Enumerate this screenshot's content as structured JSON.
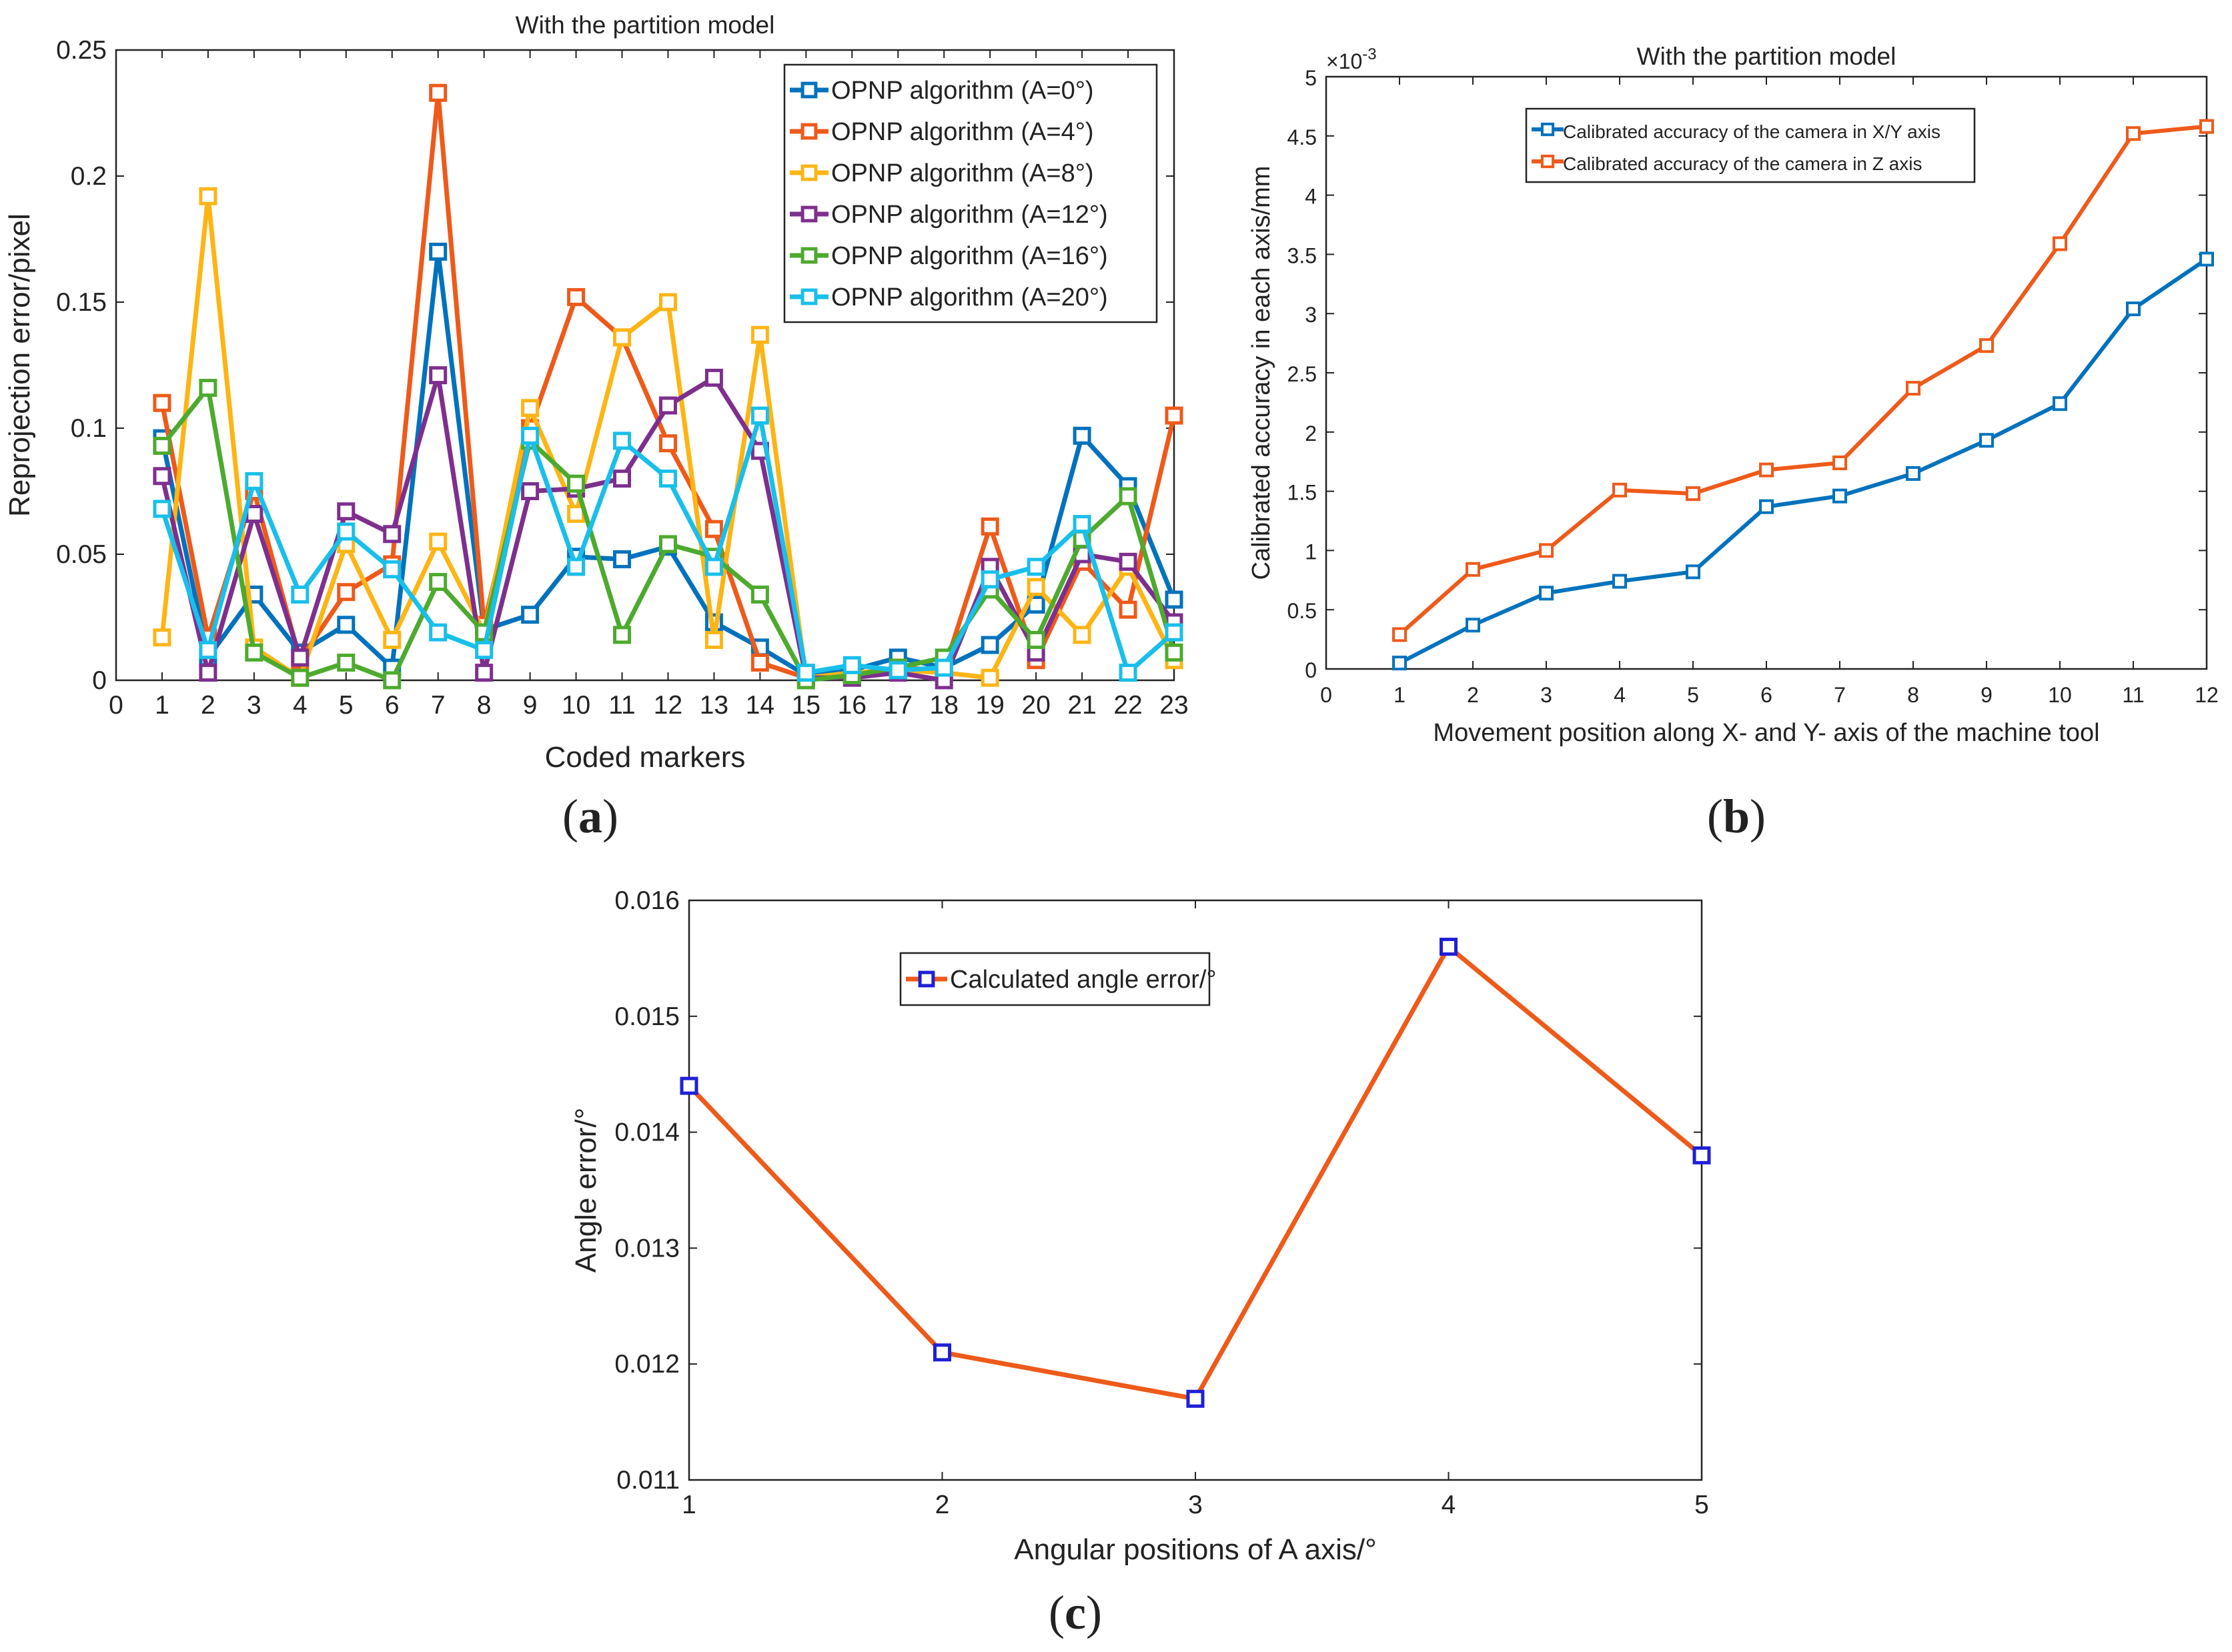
{
  "chart_data": [
    {
      "type": "line",
      "title": "With the partition model",
      "xlabel": "Coded markers",
      "ylabel": "Reprojection error/pixel",
      "panel_label": "a",
      "xlim": [
        0,
        23
      ],
      "ylim": [
        0,
        0.25
      ],
      "xticks": [
        "0",
        "1",
        "2",
        "3",
        "4",
        "5",
        "6",
        "7",
        "8",
        "9",
        "10",
        "11",
        "12",
        "13",
        "14",
        "15",
        "16",
        "17",
        "18",
        "19",
        "20",
        "21",
        "22",
        "23"
      ],
      "yticks": [
        "0",
        "0.05",
        "0.1",
        "0.15",
        "0.2",
        "0.25"
      ],
      "legend_position": "top-right",
      "x": [
        1,
        2,
        3,
        4,
        5,
        6,
        7,
        8,
        9,
        10,
        11,
        12,
        13,
        14,
        15,
        16,
        17,
        18,
        19,
        20,
        21,
        22,
        23
      ],
      "series": [
        {
          "name": "OPNP algorithm (A=0°)",
          "color": "#0072BD",
          "values": [
            0.096,
            0.009,
            0.034,
            0.011,
            0.022,
            0.005,
            0.17,
            0.02,
            0.026,
            0.049,
            0.048,
            0.053,
            0.023,
            0.013,
            0.002,
            0.004,
            0.009,
            0.005,
            0.014,
            0.03,
            0.097,
            0.077,
            0.032
          ]
        },
        {
          "name": "OPNP algorithm (A=4°)",
          "color": "#EE5A1A",
          "values": [
            0.11,
            0.017,
            0.075,
            0.008,
            0.035,
            0.046,
            0.233,
            0.022,
            0.1,
            0.152,
            0.136,
            0.094,
            0.06,
            0.007,
            0.001,
            0.002,
            0.005,
            0.004,
            0.061,
            0.008,
            0.047,
            0.028,
            0.105
          ]
        },
        {
          "name": "OPNP algorithm (A=8°)",
          "color": "#FDB515",
          "values": [
            0.017,
            0.192,
            0.013,
            0.001,
            0.054,
            0.016,
            0.055,
            0.019,
            0.108,
            0.066,
            0.136,
            0.15,
            0.016,
            0.137,
            0.001,
            0.003,
            0.004,
            0.003,
            0.001,
            0.037,
            0.018,
            0.045,
            0.008
          ]
        },
        {
          "name": "OPNP algorithm (A=12°)",
          "color": "#7E2F8E",
          "values": [
            0.081,
            0.003,
            0.066,
            0.009,
            0.067,
            0.058,
            0.121,
            0.003,
            0.075,
            0.076,
            0.08,
            0.109,
            0.12,
            0.091,
            0.001,
            0.001,
            0.003,
            0.0,
            0.045,
            0.011,
            0.05,
            0.047,
            0.023
          ]
        },
        {
          "name": "OPNP algorithm (A=16°)",
          "color": "#4DAA2E",
          "values": [
            0.093,
            0.116,
            0.011,
            0.001,
            0.007,
            0.0,
            0.039,
            0.019,
            0.095,
            0.078,
            0.018,
            0.054,
            0.049,
            0.034,
            0.0,
            0.002,
            0.005,
            0.009,
            0.036,
            0.016,
            0.056,
            0.073,
            0.011
          ]
        },
        {
          "name": "OPNP algorithm (A=20°)",
          "color": "#19BFEA",
          "values": [
            0.068,
            0.012,
            0.079,
            0.034,
            0.059,
            0.044,
            0.019,
            0.012,
            0.097,
            0.045,
            0.095,
            0.08,
            0.045,
            0.105,
            0.003,
            0.006,
            0.004,
            0.005,
            0.04,
            0.045,
            0.062,
            0.003,
            0.019
          ]
        }
      ]
    },
    {
      "type": "line",
      "title": "With the partition model",
      "xlabel": "Movement position along X- and Y- axis of the machine tool",
      "ylabel": "Calibrated accuracy in each axis/mm",
      "y_exponent_label": "×10",
      "y_exponent_power": "-3",
      "panel_label": "b",
      "xlim": [
        0,
        12
      ],
      "ylim": [
        0,
        5
      ],
      "xticks": [
        "0",
        "1",
        "2",
        "3",
        "4",
        "5",
        "6",
        "7",
        "8",
        "9",
        "10",
        "11",
        "12"
      ],
      "yticks": [
        "0",
        "0.5",
        "1",
        "1.5",
        "2",
        "2.5",
        "3",
        "3.5",
        "4",
        "4.5",
        "5"
      ],
      "legend_position": "top-left",
      "x": [
        1,
        2,
        3,
        4,
        5,
        6,
        7,
        8,
        9,
        10,
        11,
        12
      ],
      "series": [
        {
          "name": "Calibrated accuracy of the camera in X/Y axis",
          "color": "#0072BD",
          "values": [
            0.05,
            0.37,
            0.64,
            0.74,
            0.82,
            1.37,
            1.46,
            1.65,
            1.93,
            2.24,
            3.04,
            3.46
          ]
        },
        {
          "name": "Calibrated accuracy of the camera in Z axis",
          "color": "#EE5A1A",
          "values": [
            0.29,
            0.84,
            1.0,
            1.51,
            1.48,
            1.68,
            1.74,
            2.37,
            2.73,
            3.59,
            4.52,
            4.58
          ]
        }
      ]
    },
    {
      "type": "line",
      "title": "",
      "xlabel": "Angular positions of A axis/°",
      "ylabel": "Angle error/°",
      "panel_label": "c",
      "xlim": [
        1,
        5
      ],
      "ylim": [
        0.011,
        0.016
      ],
      "xticks": [
        "1",
        "2",
        "3",
        "4",
        "5"
      ],
      "yticks": [
        "0.011",
        "0.012",
        "0.013",
        "0.014",
        "0.015",
        "0.016"
      ],
      "legend_position": "top-center",
      "x": [
        1,
        2,
        3,
        4,
        5
      ],
      "series": [
        {
          "name": "Calculated angle error/°",
          "color": "#EE5A1A",
          "marker_color": "#1F1FD8",
          "values": [
            0.0144,
            0.0121,
            0.0117,
            0.0156,
            0.0138
          ]
        }
      ]
    }
  ]
}
